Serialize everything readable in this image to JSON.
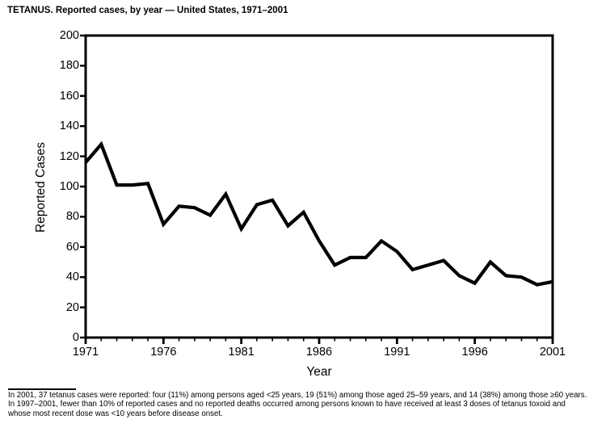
{
  "title": "TETANUS. Reported cases, by year — United States, 1971–2001",
  "chart_data": {
    "type": "line",
    "title": "TETANUS. Reported cases, by year — United States, 1971–2001",
    "xlabel": "Year",
    "ylabel": "Reported Cases",
    "xlim": [
      1971,
      2001
    ],
    "ylim": [
      0,
      200
    ],
    "xticks": [
      1971,
      1976,
      1981,
      1986,
      1991,
      1996,
      2001
    ],
    "yticks": [
      0,
      20,
      40,
      60,
      80,
      100,
      120,
      140,
      160,
      180,
      200
    ],
    "grid": false,
    "frame": true,
    "legend": "none",
    "line_color": "#000000",
    "axis_color": "#000000",
    "background_color": "#ffffff",
    "x": [
      1971,
      1972,
      1973,
      1974,
      1975,
      1976,
      1977,
      1978,
      1979,
      1980,
      1981,
      1982,
      1983,
      1984,
      1985,
      1986,
      1987,
      1988,
      1989,
      1990,
      1991,
      1992,
      1993,
      1994,
      1995,
      1996,
      1997,
      1998,
      1999,
      2000,
      2001
    ],
    "values": [
      116,
      128,
      101,
      101,
      102,
      75,
      87,
      86,
      81,
      95,
      72,
      88,
      91,
      74,
      83,
      64,
      48,
      53,
      53,
      64,
      57,
      45,
      48,
      51,
      41,
      36,
      50,
      41,
      40,
      35,
      37
    ]
  },
  "footnote": {
    "lines": [
      "In 2001, 37 tetanus cases were reported: four (11%) among persons aged <25 years, 19 (51%) among those aged 25–59 years, and 14 (38%) among those ≥60 years.",
      "In 1997–2001, fewer than 10% of reported cases and no reported deaths occurred among persons known to have received at least 3 doses of tetanus toxoid and",
      "whose most recent dose was <10 years before disease onset."
    ]
  }
}
